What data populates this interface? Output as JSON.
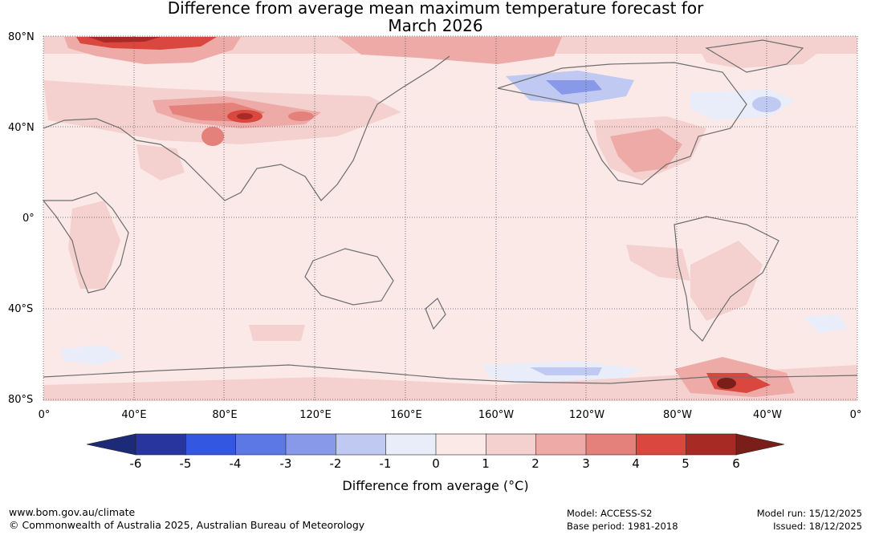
{
  "title": {
    "line1": "Difference from average mean maximum temperature forecast for",
    "line2": "March 2026"
  },
  "map": {
    "lat_labels": [
      "80°N",
      "40°N",
      "0°",
      "40°S",
      "80°S"
    ],
    "lon_labels": [
      "0°",
      "40°E",
      "80°E",
      "120°E",
      "160°E",
      "160°W",
      "120°W",
      "80°W",
      "40°W",
      "0°"
    ]
  },
  "colorbar": {
    "ticks": [
      "-6",
      "-5",
      "-4",
      "-3",
      "-2",
      "-1",
      "0",
      "1",
      "2",
      "3",
      "4",
      "5",
      "6"
    ],
    "colors": [
      "#29359e",
      "#3357e0",
      "#5c78e4",
      "#8899ea",
      "#c0c9f2",
      "#e9ecf9",
      "#fbe9e8",
      "#f4d1cf",
      "#edaaa6",
      "#e5817b",
      "#d9473e",
      "#a82a24"
    ],
    "under_color": "#1d2a78",
    "over_color": "#7a1e19",
    "label": "Difference from average (°C)"
  },
  "footer": {
    "website": "www.bom.gov.au/climate",
    "copyright": "© Commonwealth of Australia 2025, Australian Bureau of Meteorology",
    "model": "Model: ACCESS-S2",
    "base_period": "Base period: 1981-2018",
    "model_run": "Model run: 15/12/2025",
    "issued": "Issued: 18/12/2025"
  }
}
